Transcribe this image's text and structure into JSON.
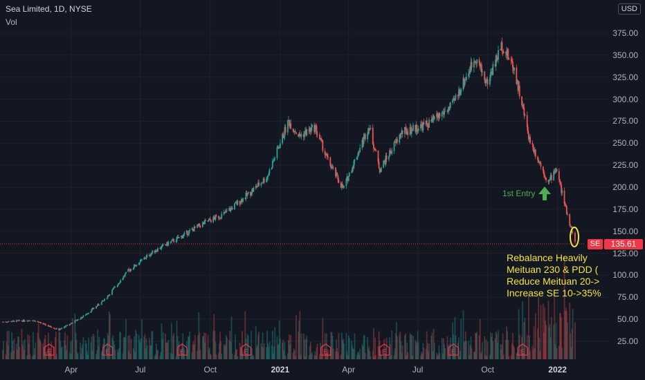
{
  "header": {
    "title": "Sea Limited, 1D, NYSE",
    "volume_label": "Vol",
    "currency": "USD"
  },
  "price_tag": {
    "symbol": "SE",
    "value": "135.61"
  },
  "annotations": {
    "entry": "1st Entry",
    "note": [
      "Rebalance Heavily",
      "Meituan 230 & PDD (",
      "Reduce Meituan 20->",
      "Increase SE 10->35%"
    ]
  },
  "colors": {
    "up": "#26a69a",
    "down": "#ef5350",
    "background": "#131722",
    "grid": "#1e222d",
    "annotation": "#f5e63b",
    "arrow": "#4caf50",
    "earnings": "#f23645"
  },
  "chart_data": {
    "type": "candlestick",
    "title": "Sea Limited, 1D, NYSE",
    "ylabel": "USD",
    "ylim": [
      0,
      395
    ],
    "y_ticks": [
      "375.00",
      "350.00",
      "325.00",
      "300.00",
      "275.00",
      "250.00",
      "225.00",
      "200.00",
      "175.00",
      "150.00",
      "125.00",
      "100.00",
      "75.00",
      "50.00",
      "25.00"
    ],
    "x_ticks": [
      "Apr",
      "Jul",
      "Oct",
      "2021",
      "Apr",
      "Jul",
      "Oct",
      "2022"
    ],
    "last_price": 135.61,
    "price_path": [
      [
        "2020-01-02",
        47
      ],
      [
        "2020-02-10",
        49
      ],
      [
        "2020-03-16",
        38
      ],
      [
        "2020-04-15",
        52
      ],
      [
        "2020-05-15",
        72
      ],
      [
        "2020-06-15",
        105
      ],
      [
        "2020-07-20",
        128
      ],
      [
        "2020-08-20",
        142
      ],
      [
        "2020-09-20",
        158
      ],
      [
        "2020-10-20",
        170
      ],
      [
        "2020-11-20",
        192
      ],
      [
        "2020-12-15",
        212
      ],
      [
        "2021-01-12",
        275
      ],
      [
        "2021-01-26",
        258
      ],
      [
        "2021-02-16",
        268
      ],
      [
        "2021-03-05",
        230
      ],
      [
        "2021-03-25",
        198
      ],
      [
        "2021-04-28",
        270
      ],
      [
        "2021-05-12",
        220
      ],
      [
        "2021-06-10",
        262
      ],
      [
        "2021-07-15",
        272
      ],
      [
        "2021-08-15",
        292
      ],
      [
        "2021-09-15",
        348
      ],
      [
        "2021-09-30",
        318
      ],
      [
        "2021-10-20",
        362
      ],
      [
        "2021-11-05",
        335
      ],
      [
        "2021-11-25",
        255
      ],
      [
        "2021-12-10",
        225
      ],
      [
        "2021-12-20",
        205
      ],
      [
        "2021-12-30",
        222
      ],
      [
        "2022-01-12",
        175
      ],
      [
        "2022-01-24",
        138
      ]
    ],
    "volume_profile": "volume bars along bottom, heavier in late 2021 / Jan 2022",
    "markers": [
      {
        "type": "earnings",
        "label": "E",
        "date": "2020-03-03"
      },
      {
        "type": "earnings",
        "label": "E",
        "date": "2020-05-19"
      },
      {
        "type": "earnings",
        "label": "E",
        "date": "2020-08-25"
      },
      {
        "type": "earnings",
        "label": "E",
        "date": "2020-11-17"
      },
      {
        "type": "earnings",
        "label": "E",
        "date": "2021-03-02"
      },
      {
        "type": "earnings",
        "label": "E",
        "date": "2021-05-18"
      },
      {
        "type": "earnings",
        "label": "E",
        "date": "2021-08-17"
      },
      {
        "type": "earnings",
        "label": "E",
        "date": "2021-11-16"
      }
    ]
  }
}
